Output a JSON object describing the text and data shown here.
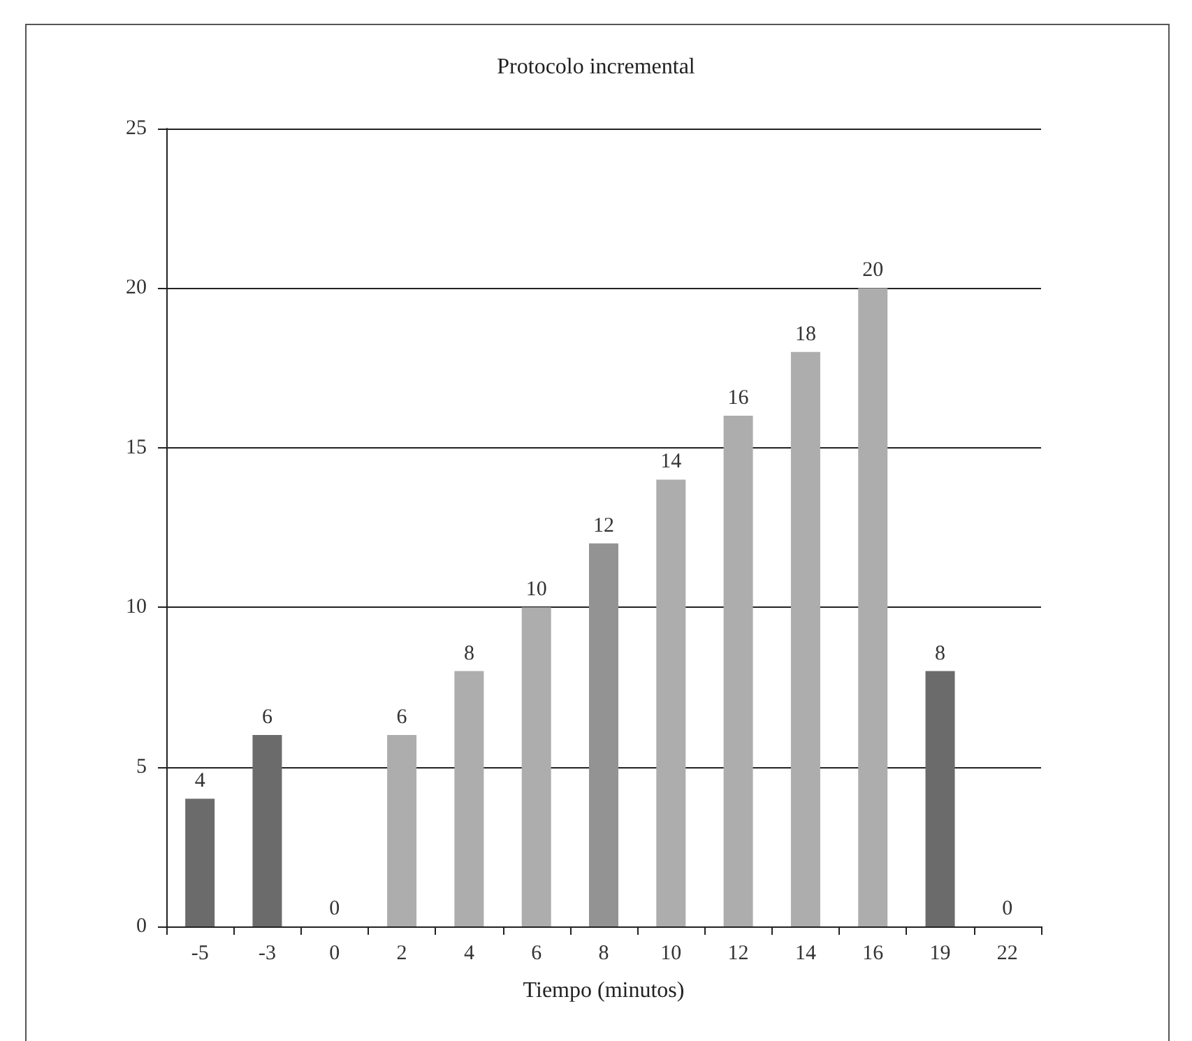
{
  "chart_data": {
    "type": "bar",
    "title": "Protocolo incremental",
    "xlabel": "Tiempo (minutos)",
    "categories": [
      "-5",
      "-3",
      "0",
      "2",
      "4",
      "6",
      "8",
      "10",
      "12",
      "14",
      "16",
      "19",
      "22"
    ],
    "values": [
      4,
      6,
      0,
      6,
      8,
      10,
      12,
      14,
      16,
      18,
      20,
      8,
      0
    ],
    "colors": [
      "#6b6b6b",
      "#6b6b6b",
      "#adadad",
      "#adadad",
      "#adadad",
      "#adadad",
      "#939393",
      "#adadad",
      "#adadad",
      "#adadad",
      "#adadad",
      "#6b6b6b",
      "#adadad"
    ],
    "ylim": [
      0,
      25
    ],
    "yticks": [
      0,
      5,
      10,
      15,
      20,
      25
    ],
    "grid": "y",
    "data_labels": true
  }
}
